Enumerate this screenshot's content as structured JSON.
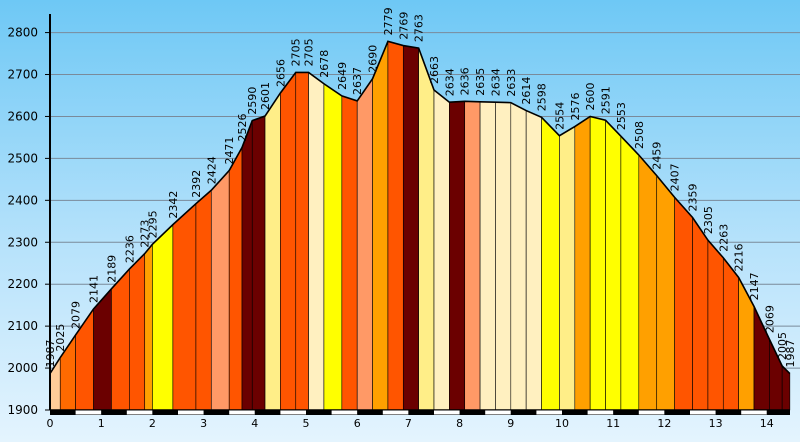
{
  "chart_data": {
    "type": "area",
    "title": "",
    "xlabel": "",
    "ylabel": "",
    "xlim": [
      0,
      14.45
    ],
    "ylim": [
      1900,
      2830
    ],
    "grid": true,
    "y_ticks": [
      1900,
      2000,
      2100,
      2200,
      2300,
      2400,
      2500,
      2600,
      2700,
      2800
    ],
    "x_ticks": [
      0,
      1,
      2,
      3,
      4,
      5,
      6,
      7,
      8,
      9,
      10,
      11,
      12,
      13,
      14
    ],
    "points": [
      {
        "x": 0.0,
        "y": 1987,
        "label": "1987",
        "color": "#ffcc99"
      },
      {
        "x": 0.2,
        "y": 2025,
        "label": "2025",
        "color": "#ff6a00"
      },
      {
        "x": 0.5,
        "y": 2079,
        "label": "2079",
        "color": "#ff5500"
      },
      {
        "x": 0.85,
        "y": 2141,
        "label": "2141",
        "color": "#6b0000"
      },
      {
        "x": 1.2,
        "y": 2189,
        "label": "2189",
        "color": "#ff5500"
      },
      {
        "x": 1.55,
        "y": 2236,
        "label": "2236",
        "color": "#ff5500"
      },
      {
        "x": 1.85,
        "y": 2273,
        "label": "2273",
        "color": "#ffa000"
      },
      {
        "x": 2.0,
        "y": 2295,
        "label": "2295",
        "color": "#ffff00"
      },
      {
        "x": 2.4,
        "y": 2342,
        "label": "2342",
        "color": "#ff5500"
      },
      {
        "x": 2.85,
        "y": 2392,
        "label": "2392",
        "color": "#ff5500"
      },
      {
        "x": 3.15,
        "y": 2424,
        "label": "2424",
        "color": "#ff9966"
      },
      {
        "x": 3.5,
        "y": 2471,
        "label": "2471",
        "color": "#ff5500"
      },
      {
        "x": 3.75,
        "y": 2526,
        "label": "2526",
        "color": "#6b0000"
      },
      {
        "x": 3.95,
        "y": 2590,
        "label": "2590",
        "color": "#6b0000"
      },
      {
        "x": 4.2,
        "y": 2601,
        "label": "2601",
        "color": "#ffee88"
      },
      {
        "x": 4.5,
        "y": 2656,
        "label": "2656",
        "color": "#ff5500"
      },
      {
        "x": 4.8,
        "y": 2705,
        "label": "2705",
        "color": "#ff5500"
      },
      {
        "x": 5.05,
        "y": 2705,
        "label": "2705",
        "color": "#fff0c0"
      },
      {
        "x": 5.35,
        "y": 2678,
        "label": "2678",
        "color": "#ffff00"
      },
      {
        "x": 5.7,
        "y": 2649,
        "label": "2649",
        "color": "#ff5500"
      },
      {
        "x": 6.0,
        "y": 2637,
        "label": "2637",
        "color": "#ff9966"
      },
      {
        "x": 6.3,
        "y": 2690,
        "label": "2690",
        "color": "#ffa000"
      },
      {
        "x": 6.6,
        "y": 2779,
        "label": "2779",
        "color": "#ff5500"
      },
      {
        "x": 6.9,
        "y": 2769,
        "label": "2769",
        "color": "#6b0000"
      },
      {
        "x": 7.2,
        "y": 2763,
        "label": "2763",
        "color": "#ffee88"
      },
      {
        "x": 7.5,
        "y": 2663,
        "label": "2663",
        "color": "#fff0c0"
      },
      {
        "x": 7.8,
        "y": 2634,
        "label": "2634",
        "color": "#6b0000"
      },
      {
        "x": 8.1,
        "y": 2636,
        "label": "2636",
        "color": "#ff9966"
      },
      {
        "x": 8.4,
        "y": 2635,
        "label": "2635",
        "color": "#fff0c0"
      },
      {
        "x": 8.7,
        "y": 2634,
        "label": "2634",
        "color": "#fff0c0"
      },
      {
        "x": 9.0,
        "y": 2633,
        "label": "2633",
        "color": "#fff0c0"
      },
      {
        "x": 9.3,
        "y": 2614,
        "label": "2614",
        "color": "#fff0c0"
      },
      {
        "x": 9.6,
        "y": 2598,
        "label": "2598",
        "color": "#ffff00"
      },
      {
        "x": 9.95,
        "y": 2554,
        "label": "2554",
        "color": "#ffee88"
      },
      {
        "x": 10.25,
        "y": 2576,
        "label": "2576",
        "color": "#ffa000"
      },
      {
        "x": 10.55,
        "y": 2600,
        "label": "2600",
        "color": "#ffff00"
      },
      {
        "x": 10.85,
        "y": 2591,
        "label": "2591",
        "color": "#ffff00"
      },
      {
        "x": 11.15,
        "y": 2553,
        "label": "2553",
        "color": "#ffff00"
      },
      {
        "x": 11.5,
        "y": 2508,
        "label": "2508",
        "color": "#ffa000"
      },
      {
        "x": 11.85,
        "y": 2459,
        "label": "2459",
        "color": "#ffa000"
      },
      {
        "x": 12.2,
        "y": 2407,
        "label": "2407",
        "color": "#ff5500"
      },
      {
        "x": 12.55,
        "y": 2359,
        "label": "2359",
        "color": "#ff5500"
      },
      {
        "x": 12.85,
        "y": 2305,
        "label": "2305",
        "color": "#ff5500"
      },
      {
        "x": 13.15,
        "y": 2263,
        "label": "2263",
        "color": "#ff5500"
      },
      {
        "x": 13.45,
        "y": 2216,
        "label": "2216",
        "color": "#ffa000"
      },
      {
        "x": 13.75,
        "y": 2147,
        "label": "2147",
        "color": "#6b0000"
      },
      {
        "x": 14.05,
        "y": 2069,
        "label": "2069",
        "color": "#6b0000"
      },
      {
        "x": 14.3,
        "y": 2005,
        "label": "2005",
        "color": "#6b0000"
      },
      {
        "x": 14.45,
        "y": 1987,
        "label": "1987",
        "color": "#ffcc99"
      }
    ]
  }
}
